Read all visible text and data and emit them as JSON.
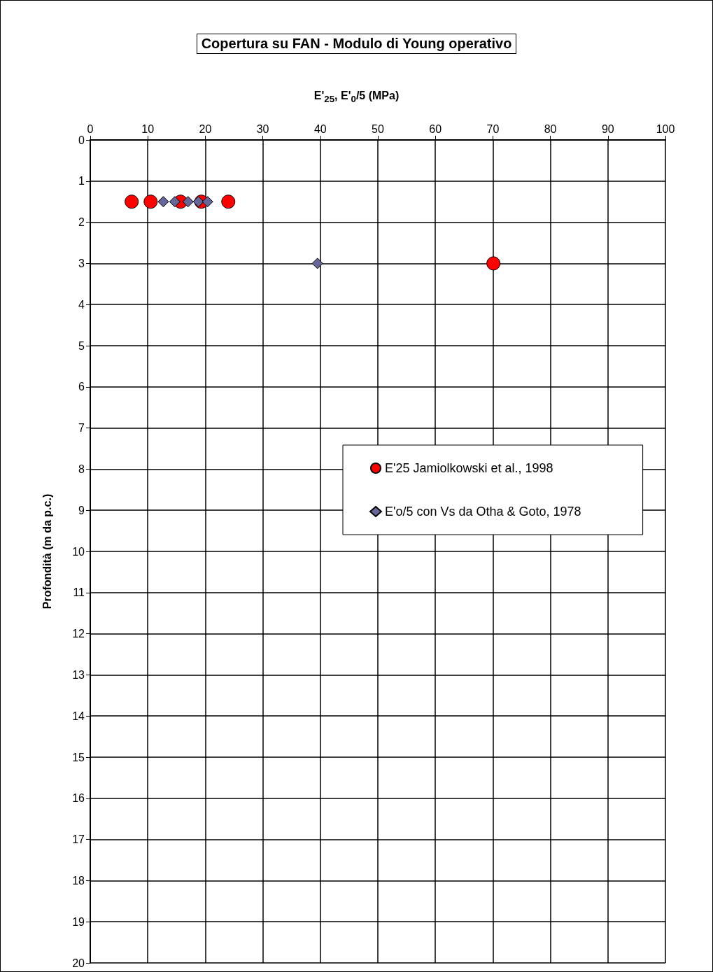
{
  "chart_data": {
    "type": "scatter",
    "title": "Copertura su FAN - Modulo di Young operativo",
    "xlabel": "E'$_{25}$, E'$_{0}$/5 (MPa)",
    "ylabel": "Profondità (m da p.c.)",
    "series": [
      {
        "name": "E'25 Jamiolkowski et al., 1998",
        "color": "#ff0000",
        "marker": "circle",
        "x": [
          7.2,
          10.5,
          15.7,
          19.3,
          24.0,
          70.1
        ],
        "values": [
          1.5,
          1.5,
          1.5,
          1.5,
          1.5,
          3
        ]
      },
      {
        "name": "E'o/5 con Vs da Otha & Goto, 1978",
        "color": "#666699",
        "marker": "diamond",
        "x": [
          12.7,
          14.7,
          17.0,
          18.8,
          20.4,
          39.5
        ],
        "values": [
          1.5,
          1.5,
          1.5,
          1.5,
          1.5,
          3
        ]
      }
    ],
    "xlim": [
      0,
      100
    ],
    "xticks": [
      0,
      10,
      20,
      30,
      40,
      50,
      60,
      70,
      80,
      90,
      100
    ],
    "ylim": [
      20,
      0
    ],
    "yticks": [
      0,
      1,
      2,
      3,
      4,
      5,
      6,
      7,
      8,
      9,
      10,
      11,
      12,
      13,
      14,
      15,
      16,
      17,
      18,
      19,
      20
    ],
    "grid": true,
    "legend": "right"
  }
}
